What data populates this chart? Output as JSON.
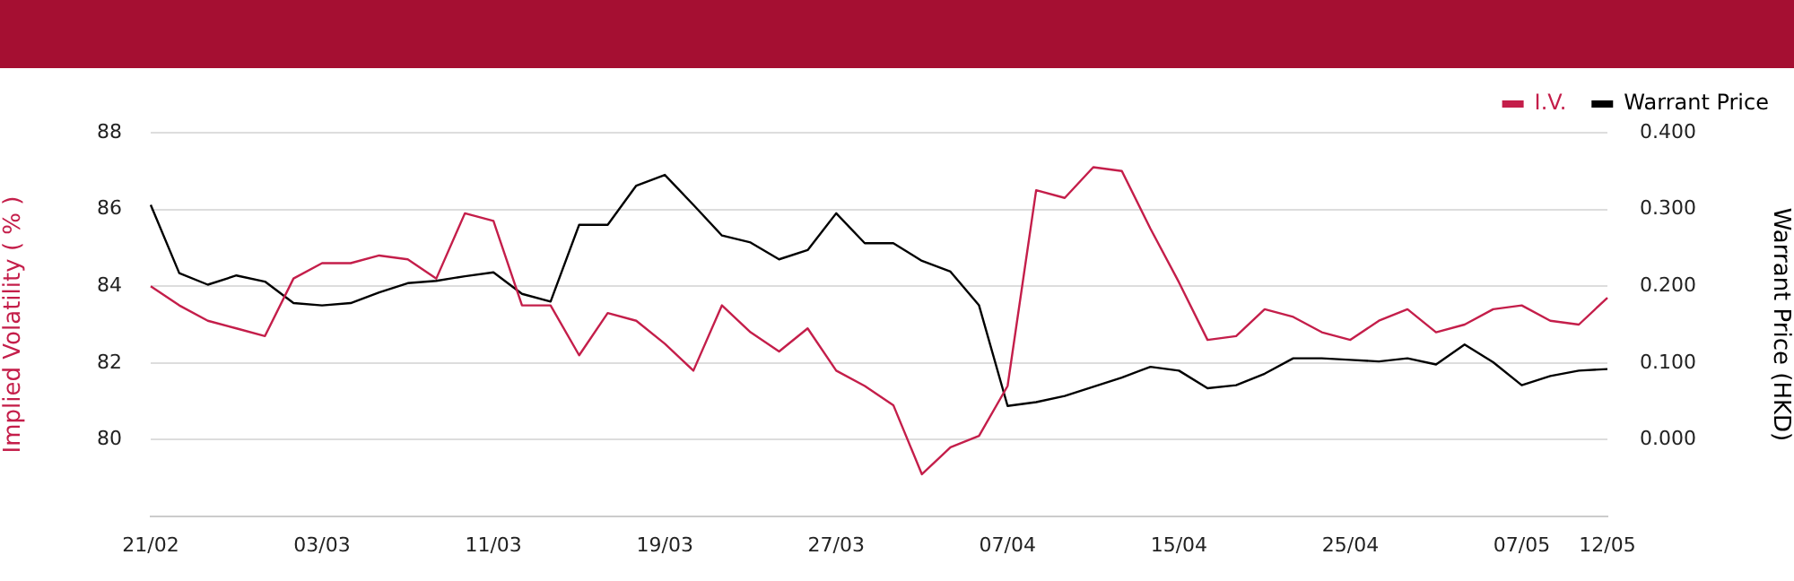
{
  "chart_data": {
    "type": "line",
    "categories": [
      "21/02",
      null,
      null,
      null,
      null,
      null,
      "03/03",
      null,
      null,
      null,
      null,
      null,
      "11/03",
      null,
      null,
      null,
      null,
      null,
      "19/03",
      null,
      null,
      null,
      null,
      null,
      "27/03",
      null,
      null,
      null,
      null,
      null,
      "07/04",
      null,
      null,
      null,
      null,
      null,
      "15/04",
      null,
      null,
      null,
      null,
      null,
      "25/04",
      null,
      null,
      null,
      null,
      null,
      "07/05",
      null,
      null,
      "12/05"
    ],
    "series": [
      {
        "name": "I.V.",
        "color": "#c41e4a",
        "values": [
          84.0,
          83.5,
          83.1,
          82.9,
          82.7,
          84.2,
          84.6,
          84.6,
          84.8,
          84.7,
          84.2,
          85.9,
          85.7,
          83.5,
          83.5,
          82.2,
          83.3,
          83.1,
          82.5,
          81.8,
          83.5,
          82.8,
          82.3,
          82.9,
          81.8,
          81.4,
          80.9,
          79.1,
          79.8,
          80.1,
          81.4,
          86.5,
          86.3,
          87.1,
          87.0,
          85.5,
          84.1,
          82.6,
          82.7,
          83.4,
          83.2,
          82.8,
          82.6,
          83.1,
          83.4,
          82.8,
          83.0,
          83.4,
          83.5,
          83.1,
          83.0,
          83.7
        ]
      },
      {
        "name": "Warrant Price",
        "color": "#000000",
        "axis": "y2",
        "values": [
          0.306,
          0.217,
          0.202,
          0.214,
          0.206,
          0.178,
          0.175,
          0.178,
          0.192,
          0.204,
          0.207,
          0.213,
          0.218,
          0.19,
          0.18,
          0.28,
          0.28,
          0.331,
          0.345,
          0.306,
          0.266,
          0.257,
          0.235,
          0.247,
          0.295,
          0.256,
          0.256,
          0.233,
          0.219,
          0.175,
          0.044,
          0.049,
          0.057,
          0.069,
          0.081,
          0.095,
          0.09,
          0.067,
          0.071,
          0.086,
          0.106,
          0.106,
          0.104,
          0.102,
          0.106,
          0.098,
          0.124,
          0.101,
          0.071,
          0.083,
          0.09,
          0.092
        ]
      }
    ],
    "ylabel": "Implied Volatility ( % )",
    "y2label": "Warrant Price (HKD)",
    "ylim": [
      78,
      88
    ],
    "yticks": [
      80,
      82,
      84,
      86,
      88
    ],
    "y2lim": [
      -0.1,
      0.4
    ],
    "y2ticks": [
      {
        "value": 0,
        "label": "0.000"
      },
      {
        "value": 0.1,
        "label": "0.100"
      },
      {
        "value": 0.2,
        "label": "0.200"
      },
      {
        "value": 0.3,
        "label": "0.300"
      },
      {
        "value": 0.4,
        "label": "0.400"
      }
    ],
    "grid": "y",
    "legend": "top right",
    "marker": "none",
    "line_style": "solid"
  }
}
